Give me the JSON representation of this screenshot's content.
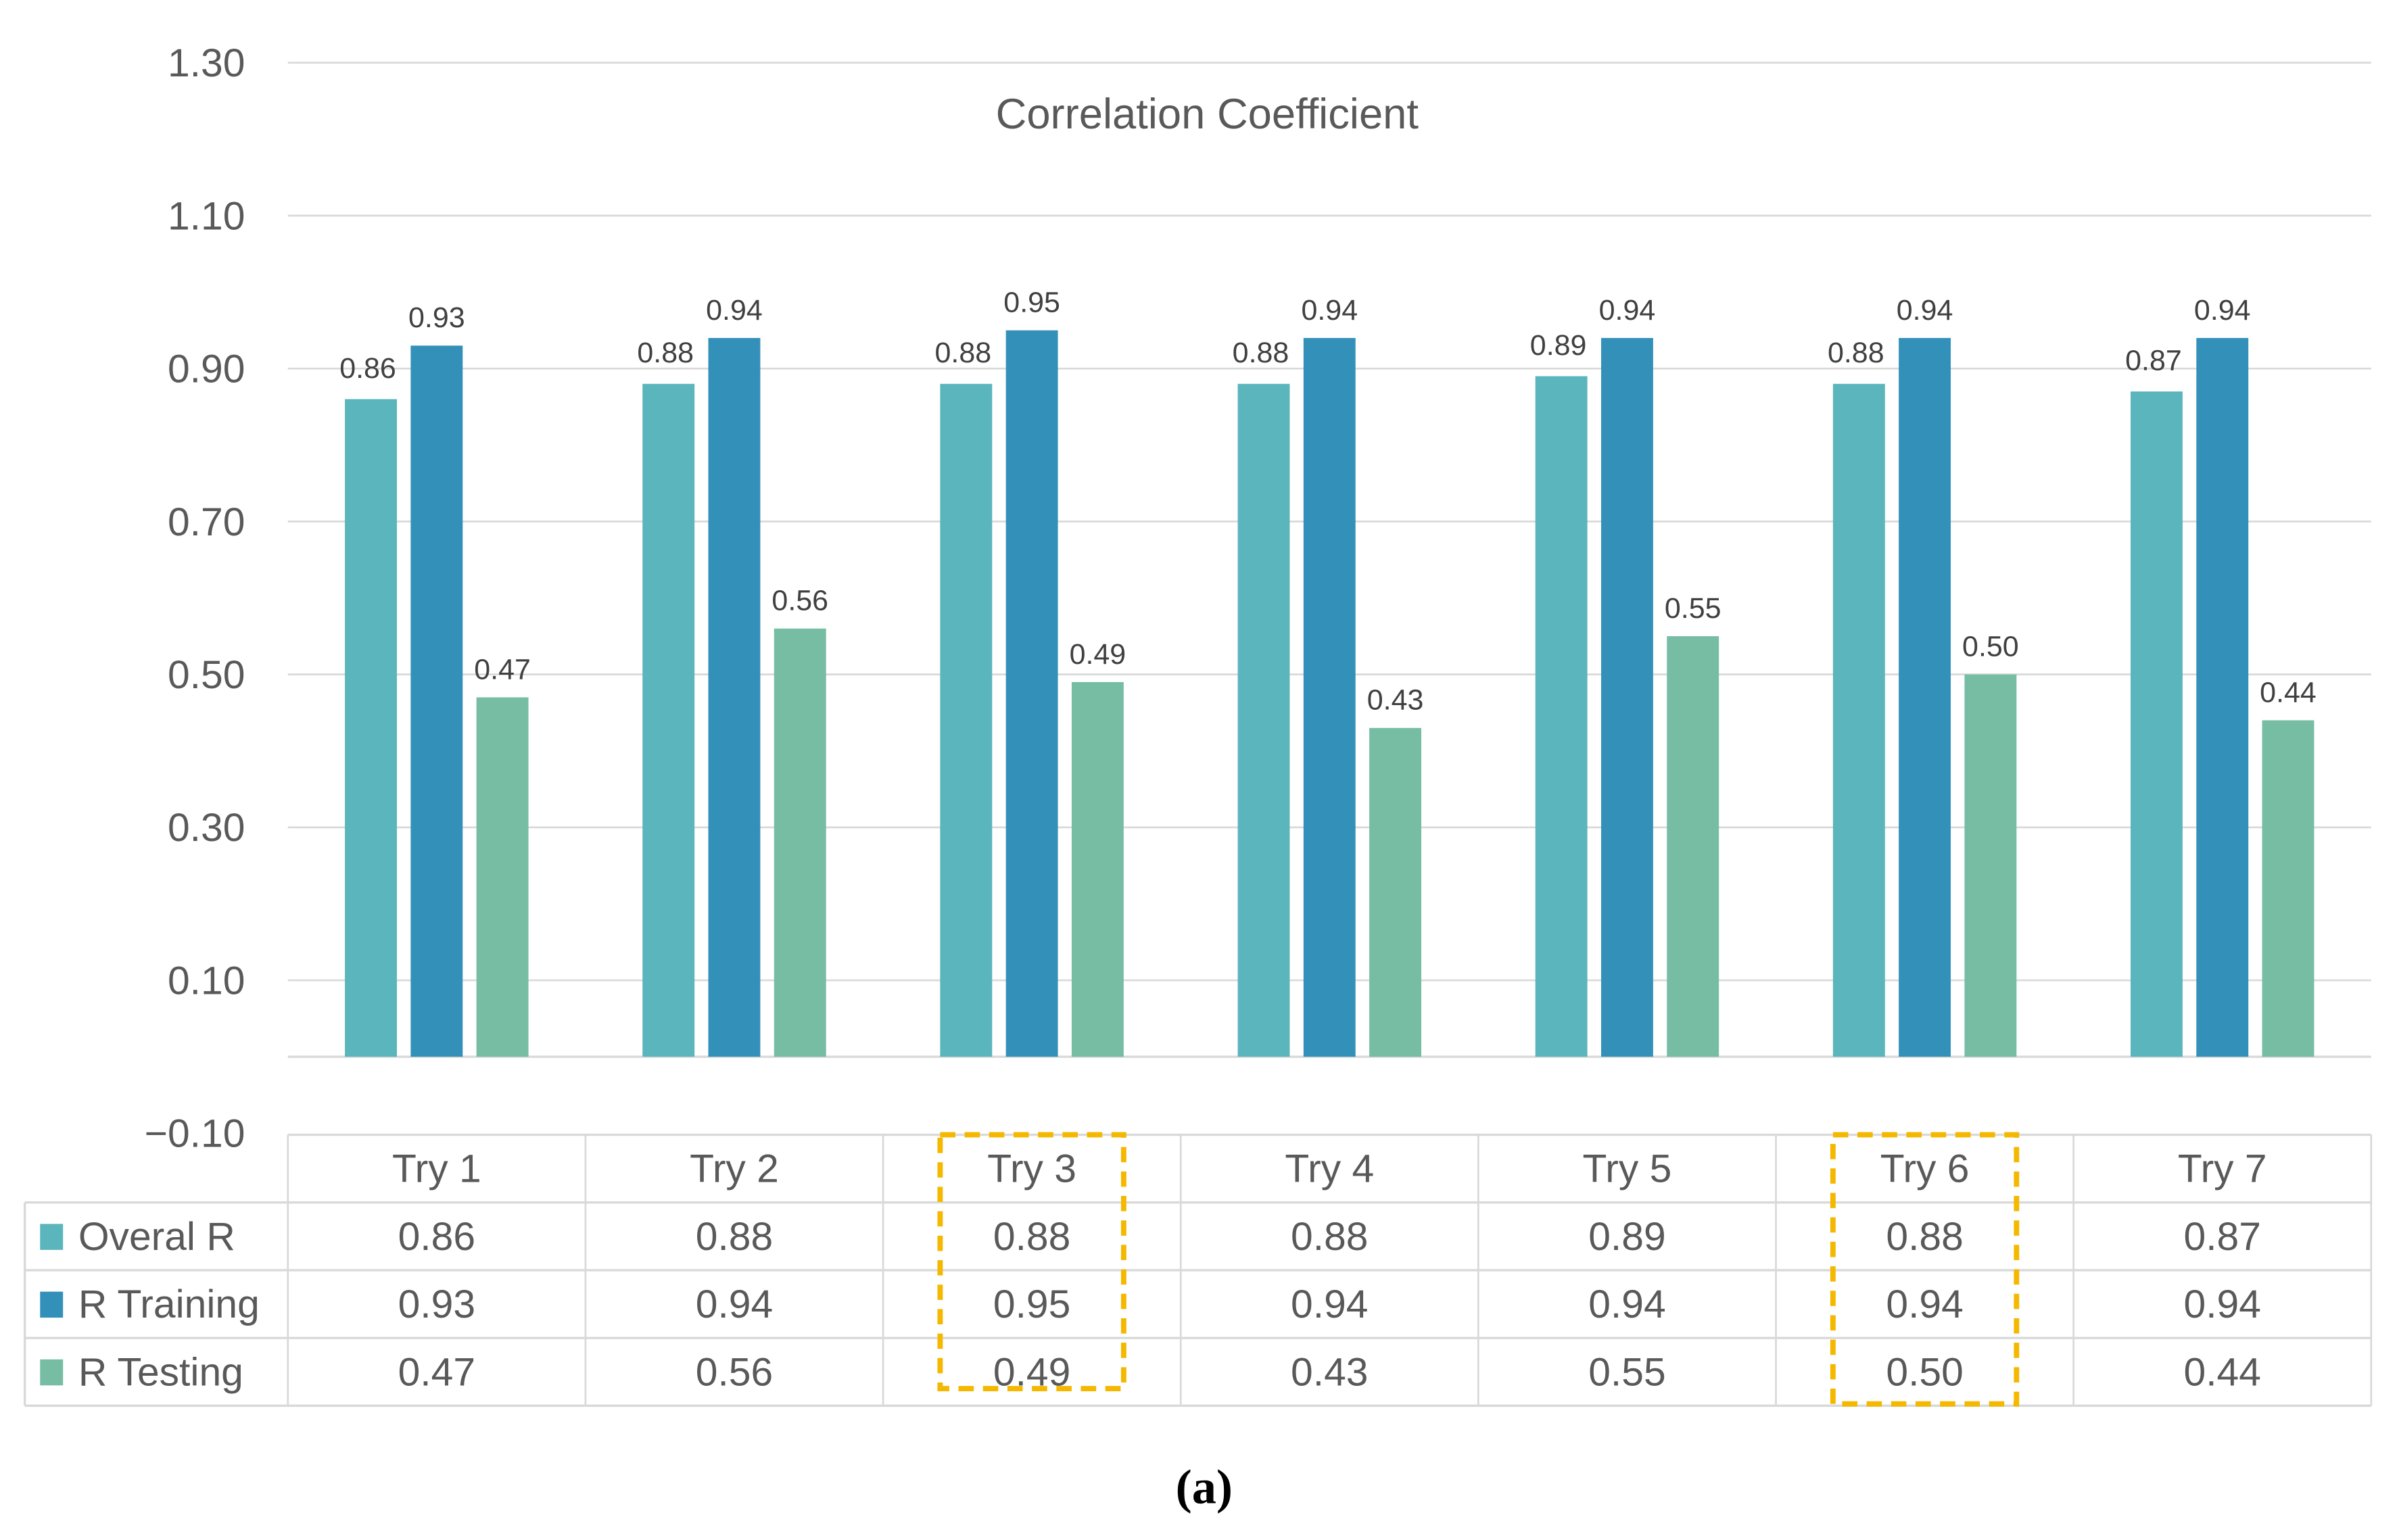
{
  "chart_data": {
    "type": "bar",
    "title": "Correlation Coefficient",
    "categories": [
      "Try 1",
      "Try 2",
      "Try 3",
      "Try 4",
      "Try 5",
      "Try 6",
      "Try 7"
    ],
    "series": [
      {
        "name": "Overal R",
        "color": "#5AB5BC",
        "values": [
          0.86,
          0.88,
          0.88,
          0.88,
          0.89,
          0.88,
          0.87
        ]
      },
      {
        "name": "R Training",
        "color": "#3391B9",
        "values": [
          0.93,
          0.94,
          0.95,
          0.94,
          0.94,
          0.94,
          0.94
        ]
      },
      {
        "name": "R Testing",
        "color": "#76BDA4",
        "values": [
          0.47,
          0.56,
          0.49,
          0.43,
          0.55,
          0.5,
          0.44
        ]
      }
    ],
    "yticks": [
      "1.30",
      "1.10",
      "0.90",
      "0.70",
      "0.50",
      "0.30",
      "0.10",
      "−0.10"
    ],
    "ytick_values": [
      1.3,
      1.1,
      0.9,
      0.7,
      0.5,
      0.3,
      0.1,
      -0.1
    ],
    "ylim": [
      -0.1,
      1.3
    ],
    "grid": true,
    "legend_placement": "data-table-left",
    "highlighted_categories": [
      "Try 3",
      "Try 6"
    ],
    "highlight_color": "#F5B800",
    "xlabel": "",
    "ylabel": ""
  },
  "caption": "(a)"
}
